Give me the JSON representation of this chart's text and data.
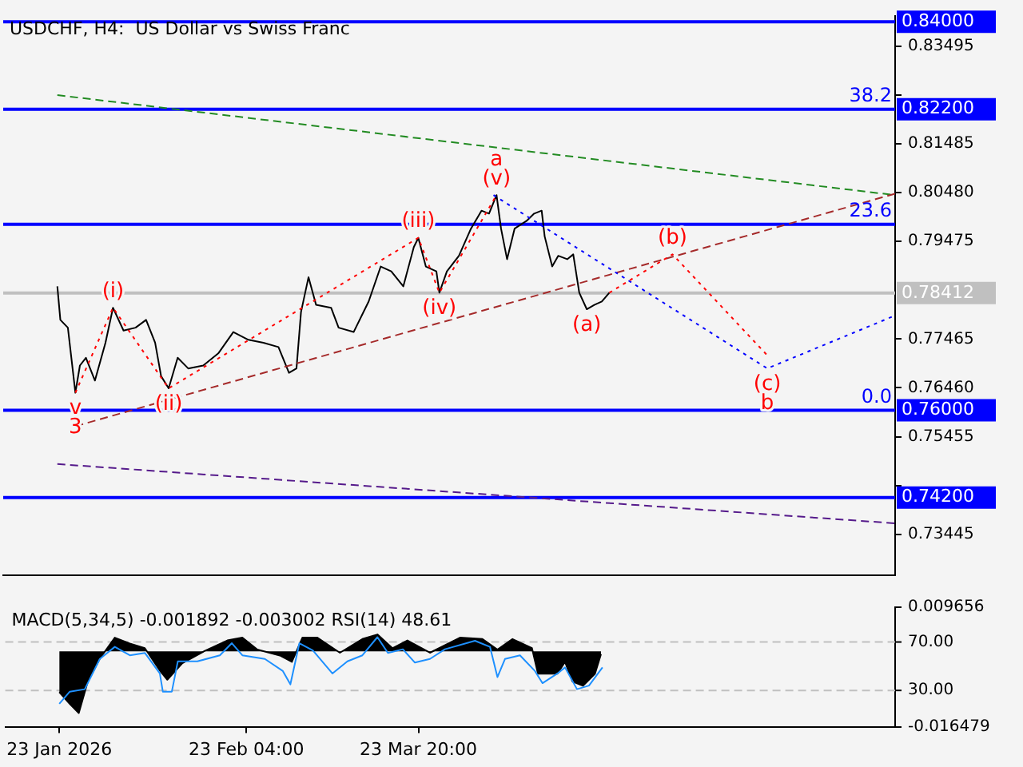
{
  "chart_data": [
    {
      "type": "line",
      "title": "USDCHF, H4:  US Dollar vs Swiss Franc",
      "legend": false,
      "grid": false,
      "marker": "none",
      "tick_labels": "y",
      "xlim": [
        "2026-01-14T00:00",
        "2026-06-11T06:00"
      ],
      "ylim": [
        0.726,
        0.8412
      ],
      "yticks": [
        {
          "value": 0.83495,
          "label": "0.83495"
        },
        {
          "value": 0.8249,
          "label": null
        },
        {
          "value": 0.81485,
          "label": "0.81485"
        },
        {
          "value": 0.8048,
          "label": "0.80480"
        },
        {
          "value": 0.79475,
          "label": "0.79475"
        },
        {
          "value": 0.77465,
          "label": "0.77465"
        },
        {
          "value": 0.7646,
          "label": "0.76460"
        },
        {
          "value": 0.75455,
          "label": "0.75455"
        },
        {
          "value": 0.7445,
          "label": null
        },
        {
          "value": 0.73445,
          "label": "0.73445"
        }
      ],
      "series": [
        {
          "color": "#000000",
          "x": [
            "2026-01-23T00:00",
            "2026-01-23T12:00",
            "2026-01-24T18:00",
            "2026-01-26T00:00",
            "2026-01-26T18:00",
            "2026-01-27T18:00",
            "2026-01-29T06:00",
            "2026-01-31T00:00",
            "2026-02-01T06:00",
            "2026-02-03T00:00",
            "2026-02-05T00:00",
            "2026-02-06T18:00",
            "2026-02-08T06:00",
            "2026-02-09T06:00",
            "2026-02-10T12:00",
            "2026-02-12T00:00",
            "2026-02-13T18:00",
            "2026-02-16T06:00",
            "2026-02-18T18:00",
            "2026-02-21T06:00",
            "2026-02-23T18:00",
            "2026-02-26T06:00",
            "2026-02-28T18:00",
            "2026-03-02T12:00",
            "2026-03-03T18:00",
            "2026-03-04T12:00",
            "2026-03-05T18:00",
            "2026-03-07T00:00",
            "2026-03-09T12:00",
            "2026-03-10T18:00",
            "2026-03-13T06:00",
            "2026-03-15T18:00",
            "2026-03-17T18:00",
            "2026-03-19T12:00",
            "2026-03-21T12:00",
            "2026-03-23T06:00",
            "2026-03-24T00:00",
            "2026-03-25T06:00",
            "2026-03-27T00:00",
            "2026-03-27T12:00",
            "2026-03-28T18:00",
            "2026-03-30T18:00",
            "2026-04-01T18:00",
            "2026-04-03T12:00",
            "2026-04-04T18:00",
            "2026-04-06T00:00",
            "2026-04-06T18:00",
            "2026-04-07T18:00",
            "2026-04-09T00:00",
            "2026-04-11T00:00",
            "2026-04-12T06:00",
            "2026-04-13T12:00",
            "2026-04-14T00:00",
            "2026-04-15T06:00",
            "2026-04-16T06:00",
            "2026-04-17T18:00",
            "2026-04-18T18:00",
            "2026-04-19T18:00",
            "2026-04-21T00:00",
            "2026-04-22T06:00",
            "2026-04-23T12:00",
            "2026-04-24T18:00"
          ],
          "values": [
            0.7855,
            0.7786,
            0.777,
            0.7636,
            0.7692,
            0.7708,
            0.7661,
            0.7739,
            0.7811,
            0.7764,
            0.777,
            0.7786,
            0.7739,
            0.767,
            0.7645,
            0.7708,
            0.7686,
            0.7692,
            0.7717,
            0.7761,
            0.7745,
            0.7739,
            0.773,
            0.7677,
            0.7686,
            0.7802,
            0.7874,
            0.7817,
            0.7811,
            0.777,
            0.7761,
            0.7824,
            0.7896,
            0.7886,
            0.7855,
            0.7936,
            0.7955,
            0.7896,
            0.7886,
            0.7842,
            0.7886,
            0.7918,
            0.7974,
            0.8011,
            0.8005,
            0.8043,
            0.7974,
            0.7911,
            0.7974,
            0.799,
            0.8005,
            0.8011,
            0.7958,
            0.7896,
            0.7918,
            0.7911,
            0.7921,
            0.7842,
            0.7808,
            0.7817,
            0.7824,
            0.7842
          ]
        },
        {
          "color": "#228b22",
          "line_style": "dashed",
          "x": [
            "2026-01-23T00:00",
            "2026-06-11T06:00"
          ],
          "values": [
            0.8249,
            0.8043
          ]
        },
        {
          "color": "#a52a2a",
          "line_style": "dashed",
          "x": [
            "2026-01-26T00:00",
            "2026-06-11T06:00"
          ],
          "values": [
            0.7567,
            0.8046
          ]
        },
        {
          "color": "#551a8b",
          "line_style": "dashed",
          "x": [
            "2026-01-23T00:00",
            "2026-06-11T06:00"
          ],
          "values": [
            0.7489,
            0.7367
          ]
        },
        {
          "color": "#0000ff",
          "line_style": "dotted",
          "x": [
            "2026-04-05T12:00",
            "2026-05-21T00:00",
            "2026-06-11T06:00"
          ],
          "values": [
            0.8043,
            0.7686,
            0.7795
          ]
        },
        {
          "color": "#ff0000",
          "line_style": "dotted",
          "x": [
            "2026-04-24T18:00",
            "2026-05-05T06:00",
            "2026-05-21T00:00"
          ],
          "values": [
            0.7842,
            0.7921,
            0.7713
          ]
        },
        {
          "color": "#ff0000",
          "line_style": "dotted",
          "x": [
            "2026-01-26T00:00",
            "2026-02-01T06:00",
            "2026-02-10T12:00",
            "2026-03-24T00:00",
            "2026-03-27T12:00",
            "2026-04-06T00:00"
          ],
          "values": [
            0.7636,
            0.7811,
            0.7645,
            0.7955,
            0.7842,
            0.8043
          ]
        }
      ],
      "ref_lines": [
        {
          "axis": "y",
          "value": 0.84,
          "label": "0.84000",
          "color": "#0000ff"
        },
        {
          "axis": "y",
          "value": 0.822,
          "label": "0.82200",
          "color": "#0000ff"
        },
        {
          "axis": "y",
          "value": 0.7983,
          "color": "#0000ff"
        },
        {
          "axis": "y",
          "value": 0.78412,
          "label": "0.78412",
          "color": "#c0c0c0"
        },
        {
          "axis": "y",
          "value": 0.76,
          "label": "0.76000",
          "color": "#0000ff"
        },
        {
          "axis": "y",
          "value": 0.742,
          "label": "0.74200",
          "color": "#0000ff"
        }
      ],
      "annotations": [
        {
          "text": "(i)",
          "x": "2026-02-01T06:00",
          "y": 0.7811
        },
        {
          "text": "(ii)",
          "x": "2026-02-10T12:00",
          "y": 0.7645
        },
        {
          "text": "(iii)",
          "x": "2026-03-24T00:00",
          "y": 0.7955
        },
        {
          "text": "(iv)",
          "x": "2026-03-27T12:00",
          "y": 0.7842
        },
        {
          "text": "(v)",
          "x": "2026-04-06T00:00",
          "y": 0.8043
        },
        {
          "text": "a",
          "x": "2026-04-06T00:00",
          "y": 0.8043
        },
        {
          "text": "(a)",
          "x": "2026-04-21T00:00",
          "y": 0.7808
        },
        {
          "text": "(b)",
          "x": "2026-05-05T06:00",
          "y": 0.7921
        },
        {
          "text": "(c)",
          "x": "2026-05-21T00:00",
          "y": 0.7686
        },
        {
          "text": "b",
          "x": "2026-05-21T00:00",
          "y": 0.7686
        },
        {
          "text": "v",
          "x": "2026-01-26T00:00",
          "y": 0.7636
        },
        {
          "text": "3",
          "x": "2026-01-26T00:00",
          "y": 0.7636
        },
        {
          "text": "38.2",
          "y": 0.822
        },
        {
          "text": "23.6",
          "y": 0.7983
        },
        {
          "text": "0.0",
          "y": 0.76
        }
      ]
    },
    {
      "type": "area",
      "title": "MACD(5,34,5) -0.001892 -0.003002 RSI(14) 48.61",
      "legend": false,
      "grid": false,
      "marker": "none",
      "xlim": [
        "2026-01-14T00:00",
        "2026-06-11T06:00"
      ],
      "xticks": [
        {
          "value": "2026-01-23T00:00",
          "label": "23 Jan 2026"
        },
        {
          "value": "2026-02-23T04:00",
          "label": "23 Feb 04:00"
        },
        {
          "value": "2026-03-23T20:00",
          "label": "23 Mar 20:00"
        }
      ],
      "ylim": [
        -0.016479,
        0.009656
      ],
      "yticks": [
        0.009656,
        -0.016479
      ],
      "y2lim": [
        0,
        98.75
      ],
      "y2ticks": [
        {
          "value": 70,
          "label": "70.00"
        },
        {
          "value": 30,
          "label": "30.00"
        }
      ],
      "series": [
        {
          "color": "#000000",
          "axis": "y",
          "x": [
            "2026-01-23T00:00",
            "2026-01-24T18:00",
            "2026-01-26T06:00",
            "2026-01-27T18:00",
            "2026-01-29T18:00",
            "2026-02-01T06:00",
            "2026-02-03T18:00",
            "2026-02-06T06:00",
            "2026-02-08T18:00",
            "2026-02-10T00:00",
            "2026-02-12T12:00",
            "2026-02-16T06:00",
            "2026-02-20T00:00",
            "2026-02-22T12:00",
            "2026-02-25T00:00",
            "2026-02-28T18:00",
            "2026-03-02T18:00",
            "2026-03-04T12:00",
            "2026-03-07T00:00",
            "2026-03-10T18:00",
            "2026-03-14T12:00",
            "2026-03-17T00:00",
            "2026-03-19T12:00",
            "2026-03-22T00:00",
            "2026-03-25T18:00",
            "2026-03-30T18:00",
            "2026-04-03T12:00",
            "2026-04-06T00:00",
            "2026-04-08T12:00",
            "2026-04-11T18:00",
            "2026-04-12T18:00",
            "2026-04-16T00:00",
            "2026-04-17T06:00",
            "2026-04-18T12:00",
            "2026-04-20T06:00",
            "2026-04-22T06:00",
            "2026-04-23T06:00"
          ],
          "values": [
            -0.0089,
            -0.0115,
            -0.0135,
            -0.0066,
            -0.0016,
            0.003,
            0.0017,
            0.0007,
            -0.0042,
            -0.0062,
            -0.0026,
            0.0001,
            0.0024,
            0.003,
            0.0004,
            -0.0009,
            -0.0023,
            0.003,
            0.003,
            -0.0003,
            0.0027,
            0.0037,
            0.0007,
            0.0024,
            -0.0003,
            0.003,
            0.0027,
            0.0004,
            0.0027,
            0.0007,
            -0.0049,
            -0.0049,
            -0.0023,
            -0.0066,
            -0.0075,
            -0.0049,
            -0.0006
          ]
        },
        {
          "type": "line",
          "color": "#1e90ff",
          "axis": "y2",
          "x": [
            "2026-01-23T00:00",
            "2026-01-24T18:00",
            "2026-01-27T06:00",
            "2026-01-29T18:00",
            "2026-02-01T06:00",
            "2026-02-03T18:00",
            "2026-02-06T06:00",
            "2026-02-08T18:00",
            "2026-02-09T06:00",
            "2026-02-10T18:00",
            "2026-02-11T18:00",
            "2026-02-15T00:00",
            "2026-02-18T18:00",
            "2026-02-20T18:00",
            "2026-02-22T12:00",
            "2026-02-26T06:00",
            "2026-03-01T06:00",
            "2026-03-02T12:00",
            "2026-03-04T00:00",
            "2026-03-06T06:00",
            "2026-03-09T12:00",
            "2026-03-12T00:00",
            "2026-03-14T12:00",
            "2026-03-17T00:00",
            "2026-03-18T18:00",
            "2026-03-21T06:00",
            "2026-03-23T06:00",
            "2026-03-25T18:00",
            "2026-03-28T06:00",
            "2026-04-02T06:00",
            "2026-04-04T18:00",
            "2026-04-06T00:00",
            "2026-04-07T06:00",
            "2026-04-09T18:00",
            "2026-04-12T06:00",
            "2026-04-13T12:00",
            "2026-04-16T00:00",
            "2026-04-17T06:00",
            "2026-04-19T06:00",
            "2026-04-21T06:00",
            "2026-04-22T18:00",
            "2026-04-23T12:00"
          ],
          "values": [
            19,
            29,
            31,
            56,
            66,
            59,
            61,
            44,
            29,
            29,
            54,
            54,
            59,
            69,
            59,
            56,
            46,
            35,
            69,
            63,
            44,
            54,
            59,
            74,
            61,
            64,
            53,
            56,
            64,
            71,
            66,
            41,
            56,
            59,
            46,
            36,
            44,
            49,
            31,
            34,
            44,
            49
          ]
        }
      ],
      "ref_lines": [
        {
          "axis": "y2",
          "value": 70,
          "color": "#c0c0c0",
          "line_style": "dashed"
        },
        {
          "axis": "y2",
          "value": 30,
          "color": "#c0c0c0",
          "line_style": "dashed"
        }
      ]
    }
  ]
}
